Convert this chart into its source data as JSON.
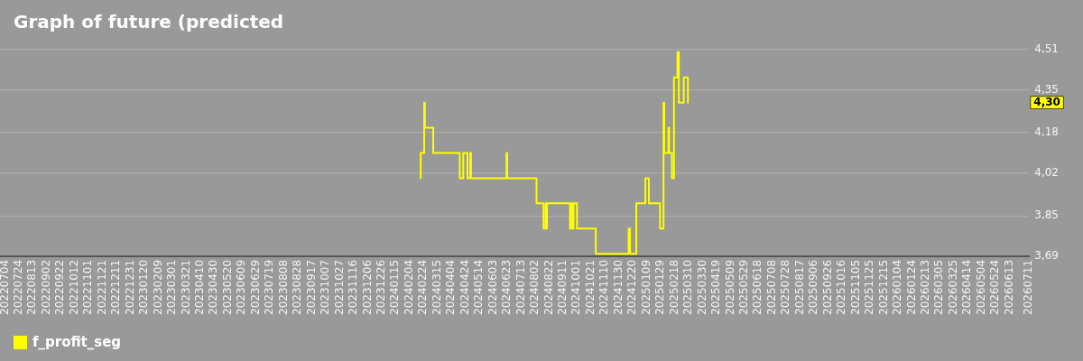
{
  "chart_data": {
    "type": "step",
    "title": "Graph of future (predicted",
    "series": [
      {
        "name": "f_profit_seg",
        "color": "#ffff00",
        "x": [
          "2024-02-19",
          "2024-02-20",
          "2024-02-25",
          "2024-02-26",
          "2024-03-09",
          "2024-04-16",
          "2024-04-21",
          "2024-04-27",
          "2024-05-01",
          "2024-05-02",
          "2024-06-22",
          "2024-06-23",
          "2024-08-04",
          "2024-08-14",
          "2024-08-17",
          "2024-08-18",
          "2024-08-19",
          "2024-09-21",
          "2024-09-23",
          "2024-09-24",
          "2024-09-26",
          "2024-10-01",
          "2024-10-28",
          "2024-12-14",
          "2024-12-16",
          "2024-12-25",
          "2025-01-07",
          "2025-01-12",
          "2025-01-28",
          "2025-02-02",
          "2025-02-03",
          "2025-02-09",
          "2025-02-10",
          "2025-02-14",
          "2025-02-17",
          "2025-02-22",
          "2025-02-24",
          "2025-03-03",
          "2025-03-09",
          "2025-03-10"
        ],
        "values": [
          4.0,
          4.1,
          4.3,
          4.2,
          4.1,
          4.0,
          4.1,
          4.0,
          4.1,
          4.0,
          4.1,
          4.0,
          3.9,
          3.8,
          3.9,
          3.8,
          3.9,
          3.8,
          3.9,
          3.8,
          3.9,
          3.8,
          3.7,
          3.8,
          3.7,
          3.9,
          4.0,
          3.9,
          3.8,
          4.3,
          4.1,
          4.2,
          4.1,
          4.0,
          4.4,
          4.5,
          4.3,
          4.4,
          4.3,
          4.3
        ]
      }
    ],
    "xlim": [
      "2022-06-27",
      "2026-07-11"
    ],
    "xticks": [
      {
        "value": "2022-07-04",
        "label": "20220704"
      },
      {
        "value": "2022-07-24",
        "label": "20220724"
      },
      {
        "value": "2022-08-13",
        "label": "20220813"
      },
      {
        "value": "2022-09-02",
        "label": "20220902"
      },
      {
        "value": "2022-09-22",
        "label": "20220922"
      },
      {
        "value": "2022-10-12",
        "label": "20221012"
      },
      {
        "value": "2022-11-01",
        "label": "20221101"
      },
      {
        "value": "2022-11-21",
        "label": "20221121"
      },
      {
        "value": "2022-12-11",
        "label": "20221211"
      },
      {
        "value": "2022-12-31",
        "label": "20221231"
      },
      {
        "value": "2023-01-20",
        "label": "20230120"
      },
      {
        "value": "2023-02-09",
        "label": "20230209"
      },
      {
        "value": "2023-03-01",
        "label": "20230301"
      },
      {
        "value": "2023-03-21",
        "label": "20230321"
      },
      {
        "value": "2023-04-10",
        "label": "20230410"
      },
      {
        "value": "2023-04-30",
        "label": "20230430"
      },
      {
        "value": "2023-05-20",
        "label": "20230520"
      },
      {
        "value": "2023-06-09",
        "label": "20230609"
      },
      {
        "value": "2023-06-29",
        "label": "20230629"
      },
      {
        "value": "2023-07-19",
        "label": "20230719"
      },
      {
        "value": "2023-08-08",
        "label": "20230808"
      },
      {
        "value": "2023-08-28",
        "label": "20230828"
      },
      {
        "value": "2023-09-17",
        "label": "20230917"
      },
      {
        "value": "2023-10-07",
        "label": "20231007"
      },
      {
        "value": "2023-10-27",
        "label": "20231027"
      },
      {
        "value": "2023-11-16",
        "label": "20231116"
      },
      {
        "value": "2023-12-06",
        "label": "20231206"
      },
      {
        "value": "2023-12-26",
        "label": "20231226"
      },
      {
        "value": "2024-01-15",
        "label": "20240115"
      },
      {
        "value": "2024-02-04",
        "label": "20240204"
      },
      {
        "value": "2024-02-24",
        "label": "20240224"
      },
      {
        "value": "2024-03-15",
        "label": "20240315"
      },
      {
        "value": "2024-04-04",
        "label": "20240404"
      },
      {
        "value": "2024-04-24",
        "label": "20240424"
      },
      {
        "value": "2024-05-14",
        "label": "20240514"
      },
      {
        "value": "2024-06-03",
        "label": "20240603"
      },
      {
        "value": "2024-06-23",
        "label": "20240623"
      },
      {
        "value": "2024-07-13",
        "label": "20240713"
      },
      {
        "value": "2024-08-02",
        "label": "20240802"
      },
      {
        "value": "2024-08-22",
        "label": "20240822"
      },
      {
        "value": "2024-09-11",
        "label": "20240911"
      },
      {
        "value": "2024-10-01",
        "label": "20241001"
      },
      {
        "value": "2024-10-21",
        "label": "20241021"
      },
      {
        "value": "2024-11-10",
        "label": "20241110"
      },
      {
        "value": "2024-11-30",
        "label": "20241130"
      },
      {
        "value": "2024-12-20",
        "label": "20241220"
      },
      {
        "value": "2025-01-09",
        "label": "20250109"
      },
      {
        "value": "2025-01-29",
        "label": "20250129"
      },
      {
        "value": "2025-02-18",
        "label": "20250218"
      },
      {
        "value": "2025-03-10",
        "label": "20250310"
      },
      {
        "value": "2025-03-30",
        "label": "20250330"
      },
      {
        "value": "2025-04-19",
        "label": "20250419"
      },
      {
        "value": "2025-05-09",
        "label": "20250509"
      },
      {
        "value": "2025-05-29",
        "label": "20250529"
      },
      {
        "value": "2025-06-18",
        "label": "20250618"
      },
      {
        "value": "2025-07-08",
        "label": "20250708"
      },
      {
        "value": "2025-07-28",
        "label": "20250728"
      },
      {
        "value": "2025-08-17",
        "label": "20250817"
      },
      {
        "value": "2025-09-06",
        "label": "20250906"
      },
      {
        "value": "2025-09-26",
        "label": "20250926"
      },
      {
        "value": "2025-10-16",
        "label": "20251016"
      },
      {
        "value": "2025-11-05",
        "label": "20251105"
      },
      {
        "value": "2025-11-25",
        "label": "20251125"
      },
      {
        "value": "2025-12-15",
        "label": "20251215"
      },
      {
        "value": "2026-01-04",
        "label": "20260104"
      },
      {
        "value": "2026-01-24",
        "label": "20260124"
      },
      {
        "value": "2026-02-13",
        "label": "20260213"
      },
      {
        "value": "2026-03-05",
        "label": "20260305"
      },
      {
        "value": "2026-03-25",
        "label": "20260325"
      },
      {
        "value": "2026-04-14",
        "label": "20260414"
      },
      {
        "value": "2026-05-04",
        "label": "20260504"
      },
      {
        "value": "2026-05-24",
        "label": "20260524"
      },
      {
        "value": "2026-06-13",
        "label": "20260613"
      },
      {
        "value": "2026-07-11",
        "label": "20260711"
      }
    ],
    "ylim": [
      3.69,
      4.51
    ],
    "yticks": [
      {
        "value": 3.69,
        "label": "3,69"
      },
      {
        "value": 3.85,
        "label": "3,85"
      },
      {
        "value": 4.02,
        "label": "4,02"
      },
      {
        "value": 4.18,
        "label": "4,18"
      },
      {
        "value": 4.35,
        "label": "4,35"
      },
      {
        "value": 4.51,
        "label": "4,51"
      }
    ],
    "grid": "y",
    "legend": "bottom left",
    "annotations": [
      {
        "text": "4,30",
        "y": 4.3
      }
    ]
  }
}
